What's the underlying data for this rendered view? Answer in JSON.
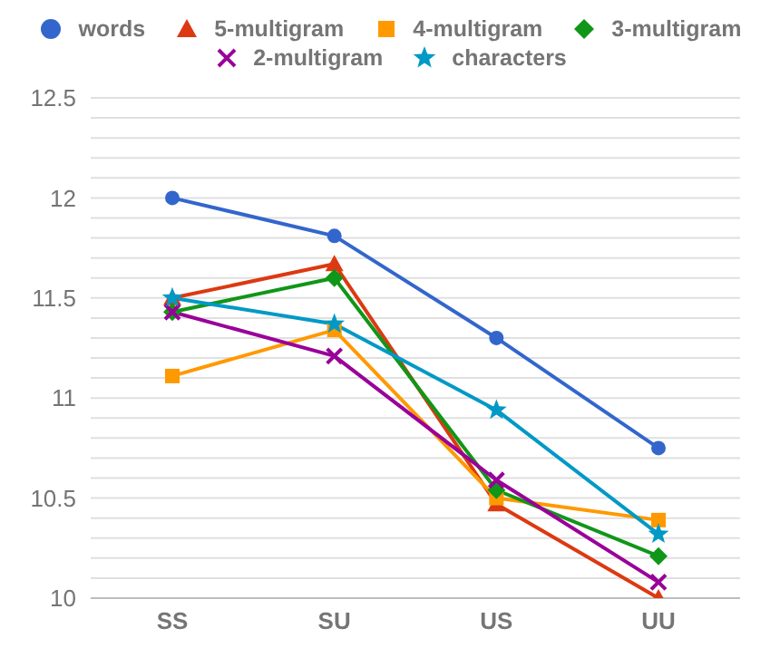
{
  "chart_data": {
    "type": "line",
    "categories": [
      "SS",
      "SU",
      "US",
      "UU"
    ],
    "series": [
      {
        "name": "words",
        "color": "#3366cc",
        "marker": "circle",
        "values": [
          12.0,
          11.81,
          11.3,
          10.75
        ]
      },
      {
        "name": "5-multigram",
        "color": "#dc3912",
        "marker": "triangle",
        "values": [
          11.5,
          11.67,
          10.47,
          10.0
        ]
      },
      {
        "name": "4-multigram",
        "color": "#ff9900",
        "marker": "square",
        "values": [
          11.11,
          11.34,
          10.5,
          10.39
        ]
      },
      {
        "name": "3-multigram",
        "color": "#109618",
        "marker": "diamond",
        "values": [
          11.43,
          11.6,
          10.54,
          10.21
        ]
      },
      {
        "name": "2-multigram",
        "color": "#990099",
        "marker": "cross",
        "values": [
          11.43,
          11.21,
          10.59,
          10.08
        ]
      },
      {
        "name": "characters",
        "color": "#0099c6",
        "marker": "star",
        "values": [
          11.5,
          11.37,
          10.94,
          10.32
        ]
      }
    ],
    "ylim": [
      10,
      12.5
    ],
    "yticks": [
      10,
      {
        "value": 10.1,
        "label": null
      },
      {
        "value": 10.2,
        "label": null
      },
      {
        "value": 10.3,
        "label": null
      },
      {
        "value": 10.4,
        "label": null
      },
      10.5,
      {
        "value": 10.6,
        "label": null
      },
      {
        "value": 10.7,
        "label": null
      },
      {
        "value": 10.8,
        "label": null
      },
      {
        "value": 10.9,
        "label": null
      },
      11,
      {
        "value": 11.1,
        "label": null
      },
      {
        "value": 11.2,
        "label": null
      },
      {
        "value": 11.3,
        "label": null
      },
      {
        "value": 11.4,
        "label": null
      },
      11.5,
      {
        "value": 11.6,
        "label": null
      },
      {
        "value": 11.7,
        "label": null
      },
      {
        "value": 11.8,
        "label": null
      },
      {
        "value": 11.9,
        "label": null
      },
      12,
      {
        "value": 12.1,
        "label": null
      },
      {
        "value": 12.2,
        "label": null
      },
      {
        "value": 12.3,
        "label": null
      },
      {
        "value": 12.4,
        "label": null
      },
      12.5
    ],
    "grid": "y",
    "legend": "top"
  }
}
